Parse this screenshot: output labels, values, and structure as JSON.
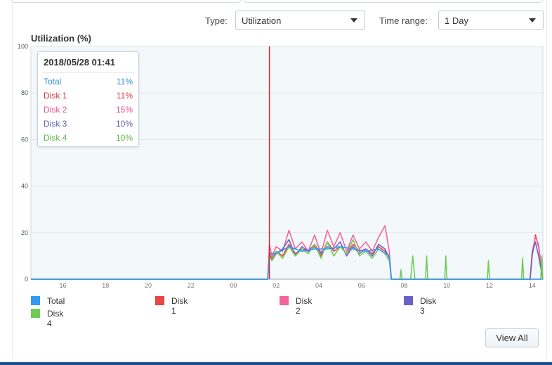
{
  "controls": {
    "type_label": "Type:",
    "type_value": "Utilization",
    "range_label": "Time range:",
    "range_value": "1 Day"
  },
  "chart_title": "Utilization (%)",
  "tooltip": {
    "time": "2018/05/28 01:41",
    "rows": [
      {
        "name": "Total",
        "value": "11%",
        "color": "#2f8fd4"
      },
      {
        "name": "Disk 1",
        "value": "11%",
        "color": "#d13d3d"
      },
      {
        "name": "Disk 2",
        "value": "15%",
        "color": "#e4578a"
      },
      {
        "name": "Disk 3",
        "value": "10%",
        "color": "#5f5fae"
      },
      {
        "name": "Disk 4",
        "value": "10%",
        "color": "#5fb84a"
      }
    ]
  },
  "legend": [
    {
      "name": "Total",
      "color": "#3399f3"
    },
    {
      "name": "Disk 1",
      "color": "#e84545"
    },
    {
      "name": "Disk 2",
      "color": "#f5649c"
    },
    {
      "name": "Disk 3",
      "color": "#6b62c9"
    },
    {
      "name": "Disk 4",
      "color": "#6fcd55"
    }
  ],
  "view_all_label": "View All",
  "chart_data": {
    "type": "line",
    "title": "Utilization (%)",
    "ylim": [
      0,
      100
    ],
    "yticks": [
      0,
      20,
      40,
      60,
      80,
      100
    ],
    "xlim": [
      14.5,
      38.5
    ],
    "xticks": [
      "16",
      "18",
      "20",
      "22",
      "00",
      "02",
      "04",
      "06",
      "08",
      "10",
      "12",
      "14"
    ],
    "xtick_hours": [
      16,
      18,
      20,
      22,
      24,
      26,
      28,
      30,
      32,
      34,
      36,
      38
    ],
    "cursor_hour": 25.68,
    "grid": true,
    "series": [
      {
        "name": "Disk 1",
        "color": "#e84545",
        "x": [
          14.5,
          25.6,
          25.68,
          25.8,
          26.0,
          26.3,
          26.6,
          26.9,
          27.2,
          27.5,
          27.8,
          28.1,
          28.4,
          28.7,
          29.0,
          29.3,
          29.6,
          29.9,
          30.2,
          30.5,
          30.8,
          31.1,
          31.3,
          31.4,
          32.4,
          32.5,
          32.6,
          37.9,
          38.0,
          38.15,
          38.3,
          38.5
        ],
        "y": [
          0,
          0,
          11,
          9,
          12,
          10,
          15,
          11,
          13,
          12,
          14,
          10,
          16,
          12,
          14,
          11,
          15,
          12,
          13,
          11,
          14,
          12,
          10,
          0,
          0,
          0,
          0,
          0,
          10,
          19,
          14,
          0
        ]
      },
      {
        "name": "Disk 2",
        "color": "#f5649c",
        "x": [
          14.5,
          25.6,
          25.68,
          25.8,
          26.0,
          26.3,
          26.6,
          26.9,
          27.2,
          27.5,
          27.8,
          28.1,
          28.4,
          28.7,
          29.0,
          29.3,
          29.6,
          29.9,
          30.2,
          30.5,
          30.8,
          31.1,
          31.3,
          31.4,
          37.9,
          38.0,
          38.15,
          38.3,
          38.5
        ],
        "y": [
          0,
          0,
          15,
          10,
          14,
          12,
          21,
          13,
          16,
          12,
          19,
          11,
          21,
          14,
          20,
          12,
          19,
          13,
          16,
          12,
          18,
          23,
          12,
          0,
          0,
          12,
          18,
          15,
          0
        ]
      },
      {
        "name": "Disk 3",
        "color": "#6b62c9",
        "x": [
          14.5,
          25.6,
          25.68,
          25.8,
          26.0,
          26.3,
          26.6,
          26.9,
          27.2,
          27.5,
          27.8,
          28.1,
          28.4,
          28.7,
          29.0,
          29.3,
          29.6,
          29.9,
          30.2,
          30.5,
          30.8,
          31.1,
          31.3,
          31.4,
          37.9,
          38.0,
          38.15,
          38.3,
          38.5
        ],
        "y": [
          0,
          0,
          10,
          8,
          11,
          13,
          17,
          10,
          14,
          12,
          15,
          11,
          14,
          13,
          16,
          10,
          14,
          11,
          13,
          10,
          15,
          13,
          9,
          0,
          0,
          11,
          16,
          10,
          0
        ]
      },
      {
        "name": "Disk 4",
        "color": "#6fcd55",
        "x": [
          14.5,
          25.6,
          25.68,
          25.8,
          26.0,
          26.3,
          26.6,
          26.9,
          27.2,
          27.5,
          27.8,
          28.1,
          28.4,
          28.7,
          29.0,
          29.3,
          29.6,
          29.9,
          30.2,
          30.5,
          30.8,
          31.1,
          31.3,
          31.4,
          31.8,
          31.85,
          31.9,
          32.3,
          32.4,
          32.5,
          33.0,
          33.05,
          33.1,
          33.9,
          33.95,
          34.0,
          35.9,
          35.95,
          36.0,
          37.5,
          37.55,
          37.6,
          38.4,
          38.45,
          38.5
        ],
        "y": [
          0,
          0,
          10,
          8,
          12,
          9,
          14,
          10,
          13,
          11,
          15,
          9,
          16,
          10,
          14,
          11,
          17,
          10,
          12,
          9,
          13,
          11,
          8,
          0,
          0,
          4,
          0,
          0,
          10,
          0,
          0,
          10,
          0,
          0,
          10,
          0,
          0,
          8,
          0,
          0,
          9,
          0,
          0,
          10,
          0
        ]
      },
      {
        "name": "Total",
        "color": "#3399f3",
        "x": [
          14.5,
          25.6,
          25.68,
          26.0,
          26.6,
          27.2,
          27.8,
          28.4,
          29.0,
          29.6,
          30.2,
          30.8,
          31.3,
          31.4,
          38.5
        ],
        "y": [
          0,
          0,
          11,
          11,
          14,
          12,
          13,
          13,
          14,
          13,
          12,
          13,
          10,
          0,
          0
        ]
      }
    ]
  }
}
